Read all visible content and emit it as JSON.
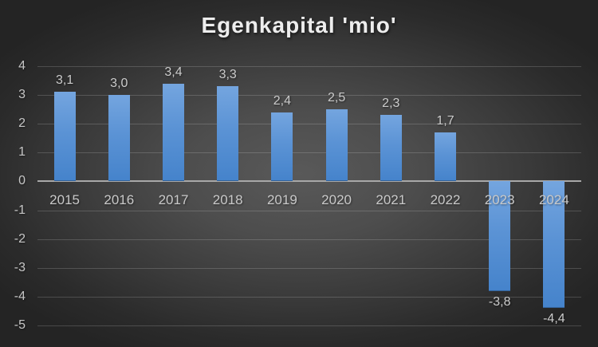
{
  "title": "Egenkapital 'mio'",
  "chart_data": {
    "type": "bar",
    "title": "Egenkapital 'mio'",
    "xlabel": "",
    "ylabel": "",
    "categories": [
      "2015",
      "2016",
      "2017",
      "2018",
      "2019",
      "2020",
      "2021",
      "2022",
      "2023",
      "2024"
    ],
    "values": [
      3.1,
      3.0,
      3.4,
      3.3,
      2.4,
      2.5,
      2.3,
      1.7,
      -3.8,
      -4.4
    ],
    "value_labels": [
      "3,1",
      "3,0",
      "3,4",
      "3,3",
      "2,4",
      "2,5",
      "2,3",
      "1,7",
      "-3,8",
      "-4,4"
    ],
    "ylim": [
      -5,
      4
    ],
    "ytick_step": 1,
    "y_tick_labels": [
      "4",
      "3",
      "2",
      "1",
      "0",
      "-1",
      "-2",
      "-3",
      "-4",
      "-5"
    ],
    "grid": true,
    "legend": false,
    "colors": {
      "bar_top": "#74a5df",
      "bar_bottom": "#4583cb",
      "background_center": "#595959",
      "background_edge": "#242424",
      "gridline": "rgba(255,255,255,0.17)",
      "zero_axis": "#a8a8a8",
      "labels": "#c9c9c9",
      "title": "#ededed"
    }
  }
}
